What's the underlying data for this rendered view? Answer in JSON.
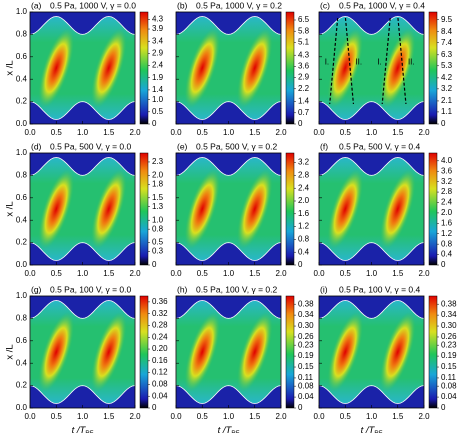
{
  "chart_data": [
    {
      "type": "heatmap",
      "panel_label": "(a)",
      "title": "0.5 Pa, 1000 V, γ = 0.0",
      "ylabel": "x /L",
      "xlim": [
        0,
        2
      ],
      "xticks": [
        {
          "value": 0,
          "label": "0.0"
        },
        0.5,
        {
          "value": 1,
          "label": "1.0"
        },
        1.5,
        {
          "value": 2,
          "label": "2.0"
        }
      ],
      "ylim": [
        0,
        1
      ],
      "yticks": [
        {
          "value": 0,
          "label": "0.0"
        },
        0.2,
        0.4,
        0.6,
        0.8,
        {
          "value": 1,
          "label": "1.0"
        }
      ],
      "clim": [
        0,
        4.6
      ],
      "cticks": [
        0,
        0.5,
        {
          "value": 1,
          "label": "1.0"
        },
        1.4,
        1.9,
        2.4,
        2.9,
        3.4,
        3.9,
        4.3
      ]
    },
    {
      "type": "heatmap",
      "panel_label": "(b)",
      "title": "0.5 Pa, 1000 V, γ = 0.2",
      "xlim": [
        0,
        2
      ],
      "xticks": [
        {
          "value": 0,
          "label": "0.0"
        },
        0.5,
        {
          "value": 1,
          "label": "1.0"
        },
        1.5,
        {
          "value": 2,
          "label": "2.0"
        }
      ],
      "ylim": [
        0,
        1
      ],
      "yticks": [
        0,
        0.2,
        0.4,
        0.6,
        0.8,
        1
      ],
      "clim": [
        0,
        7
      ],
      "cticks": [
        0,
        0.7,
        1.4,
        2.2,
        2.9,
        3.6,
        4.3,
        5.1,
        5.8,
        6.5
      ]
    },
    {
      "type": "heatmap",
      "panel_label": "(c)",
      "title": "0.5 Pa, 1000 V, γ = 0.4",
      "xlim": [
        0,
        2
      ],
      "xticks": [
        {
          "value": 0,
          "label": "0.0"
        },
        0.5,
        {
          "value": 1,
          "label": "1.0"
        },
        1.5,
        {
          "value": 2,
          "label": "2.0"
        }
      ],
      "ylim": [
        0,
        1
      ],
      "yticks": [
        0,
        0.2,
        0.4,
        0.6,
        0.8,
        1
      ],
      "clim": [
        0,
        10.2
      ],
      "cticks": [
        0,
        1.1,
        2.1,
        3.2,
        4.2,
        5.3,
        6.3,
        7.4,
        8.4,
        9.5
      ],
      "annotations": [
        "I.",
        "II.",
        "I.",
        "II."
      ]
    },
    {
      "type": "heatmap",
      "panel_label": "(d)",
      "title": "0.5 Pa, 500 V, γ = 0.0",
      "ylabel": "x /L",
      "xlim": [
        0,
        2
      ],
      "xticks": [
        {
          "value": 0,
          "label": "0.0"
        },
        0.5,
        {
          "value": 1,
          "label": "1.0"
        },
        1.5,
        {
          "value": 2,
          "label": "2.0"
        }
      ],
      "ylim": [
        0,
        1
      ],
      "yticks": [
        {
          "value": 0,
          "label": "0.0"
        },
        0.2,
        0.4,
        0.6,
        0.8,
        {
          "value": 1,
          "label": "1.0"
        }
      ],
      "clim": [
        0,
        2.5
      ],
      "cticks": [
        0,
        0.3,
        0.5,
        0.8,
        {
          "value": 1,
          "label": "1.0"
        },
        1.3,
        1.5,
        1.8,
        {
          "value": 2,
          "label": "2.0"
        },
        2.3
      ]
    },
    {
      "type": "heatmap",
      "panel_label": "(e)",
      "title": "0.5 Pa, 500 V, γ = 0.2",
      "xlim": [
        0,
        2
      ],
      "xticks": [
        {
          "value": 0,
          "label": "0.0"
        },
        0.5,
        {
          "value": 1,
          "label": "1.0"
        },
        1.5,
        {
          "value": 2,
          "label": "2.0"
        }
      ],
      "ylim": [
        0,
        1
      ],
      "yticks": [
        0,
        0.2,
        0.4,
        0.6,
        0.8,
        1
      ],
      "clim": [
        0,
        3.5
      ],
      "cticks": [
        0,
        0.4,
        0.8,
        1.2,
        1.6,
        {
          "value": 2,
          "label": "2.0"
        },
        2.4,
        2.8,
        3.2
      ]
    },
    {
      "type": "heatmap",
      "panel_label": "(f)",
      "title": "0.5 Pa, 500 V, γ = 0.4",
      "xlim": [
        0,
        2
      ],
      "xticks": [
        {
          "value": 0,
          "label": "0.0"
        },
        0.5,
        {
          "value": 1,
          "label": "1.0"
        },
        1.5,
        {
          "value": 2,
          "label": "2.0"
        }
      ],
      "ylim": [
        0,
        1
      ],
      "yticks": [
        0,
        0.2,
        0.4,
        0.6,
        0.8,
        1
      ],
      "clim": [
        0,
        4.3
      ],
      "cticks": [
        0,
        0.4,
        0.8,
        1.2,
        1.6,
        {
          "value": 2,
          "label": "2.0"
        },
        2.4,
        2.8,
        3.2,
        3.6,
        {
          "value": 4,
          "label": "4.0"
        }
      ]
    },
    {
      "type": "heatmap",
      "panel_label": "(g)",
      "title": "0.5 Pa, 100 V, γ = 0.0",
      "ylabel": "x /L",
      "xlabel": "t /T",
      "xlabel_sub": "RF",
      "xlim": [
        0,
        2
      ],
      "xticks": [
        {
          "value": 0,
          "label": "0.0"
        },
        0.5,
        {
          "value": 1,
          "label": "1.0"
        },
        1.5,
        {
          "value": 2,
          "label": "2.0"
        }
      ],
      "ylim": [
        0,
        1
      ],
      "yticks": [
        {
          "value": 0,
          "label": "0.0"
        },
        0.2,
        0.4,
        0.6,
        0.8,
        {
          "value": 1,
          "label": "1.0"
        }
      ],
      "clim": [
        0,
        0.38
      ],
      "cticks": [
        0,
        0.04,
        0.08,
        0.12,
        0.16,
        {
          "value": 0.2,
          "label": "0.20"
        },
        0.24,
        0.28,
        0.32,
        0.36
      ]
    },
    {
      "type": "heatmap",
      "panel_label": "(h)",
      "title": "0.5 Pa, 100 V, γ = 0.2",
      "xlabel": "t /T",
      "xlabel_sub": "RF",
      "xlim": [
        0,
        2
      ],
      "xticks": [
        {
          "value": 0,
          "label": "0.0"
        },
        0.5,
        {
          "value": 1,
          "label": "1.0"
        },
        1.5,
        {
          "value": 2,
          "label": "2.0"
        }
      ],
      "ylim": [
        0,
        1
      ],
      "yticks": [
        0,
        0.2,
        0.4,
        0.6,
        0.8,
        1
      ],
      "clim": [
        0,
        0.41
      ],
      "cticks": [
        0,
        0.04,
        0.08,
        0.11,
        0.15,
        0.19,
        0.23,
        0.26,
        {
          "value": 0.3,
          "label": "0.30"
        },
        0.34,
        0.38
      ]
    },
    {
      "type": "heatmap",
      "panel_label": "(i)",
      "title": "0.5 Pa, 100 V, γ = 0.4",
      "xlabel": "t /T",
      "xlabel_sub": "RF",
      "xlim": [
        0,
        2
      ],
      "xticks": [
        {
          "value": 0,
          "label": "0.0"
        },
        0.5,
        {
          "value": 1,
          "label": "1.0"
        },
        1.5,
        {
          "value": 2,
          "label": "2.0"
        }
      ],
      "ylim": [
        0,
        1
      ],
      "yticks": [
        0,
        0.2,
        0.4,
        0.6,
        0.8,
        1
      ],
      "clim": [
        0,
        0.41
      ],
      "cticks": [
        0,
        0.04,
        0.08,
        0.11,
        0.15,
        0.19,
        0.23,
        0.26,
        {
          "value": 0.3,
          "label": "0.30"
        },
        0.34,
        0.38
      ]
    }
  ]
}
